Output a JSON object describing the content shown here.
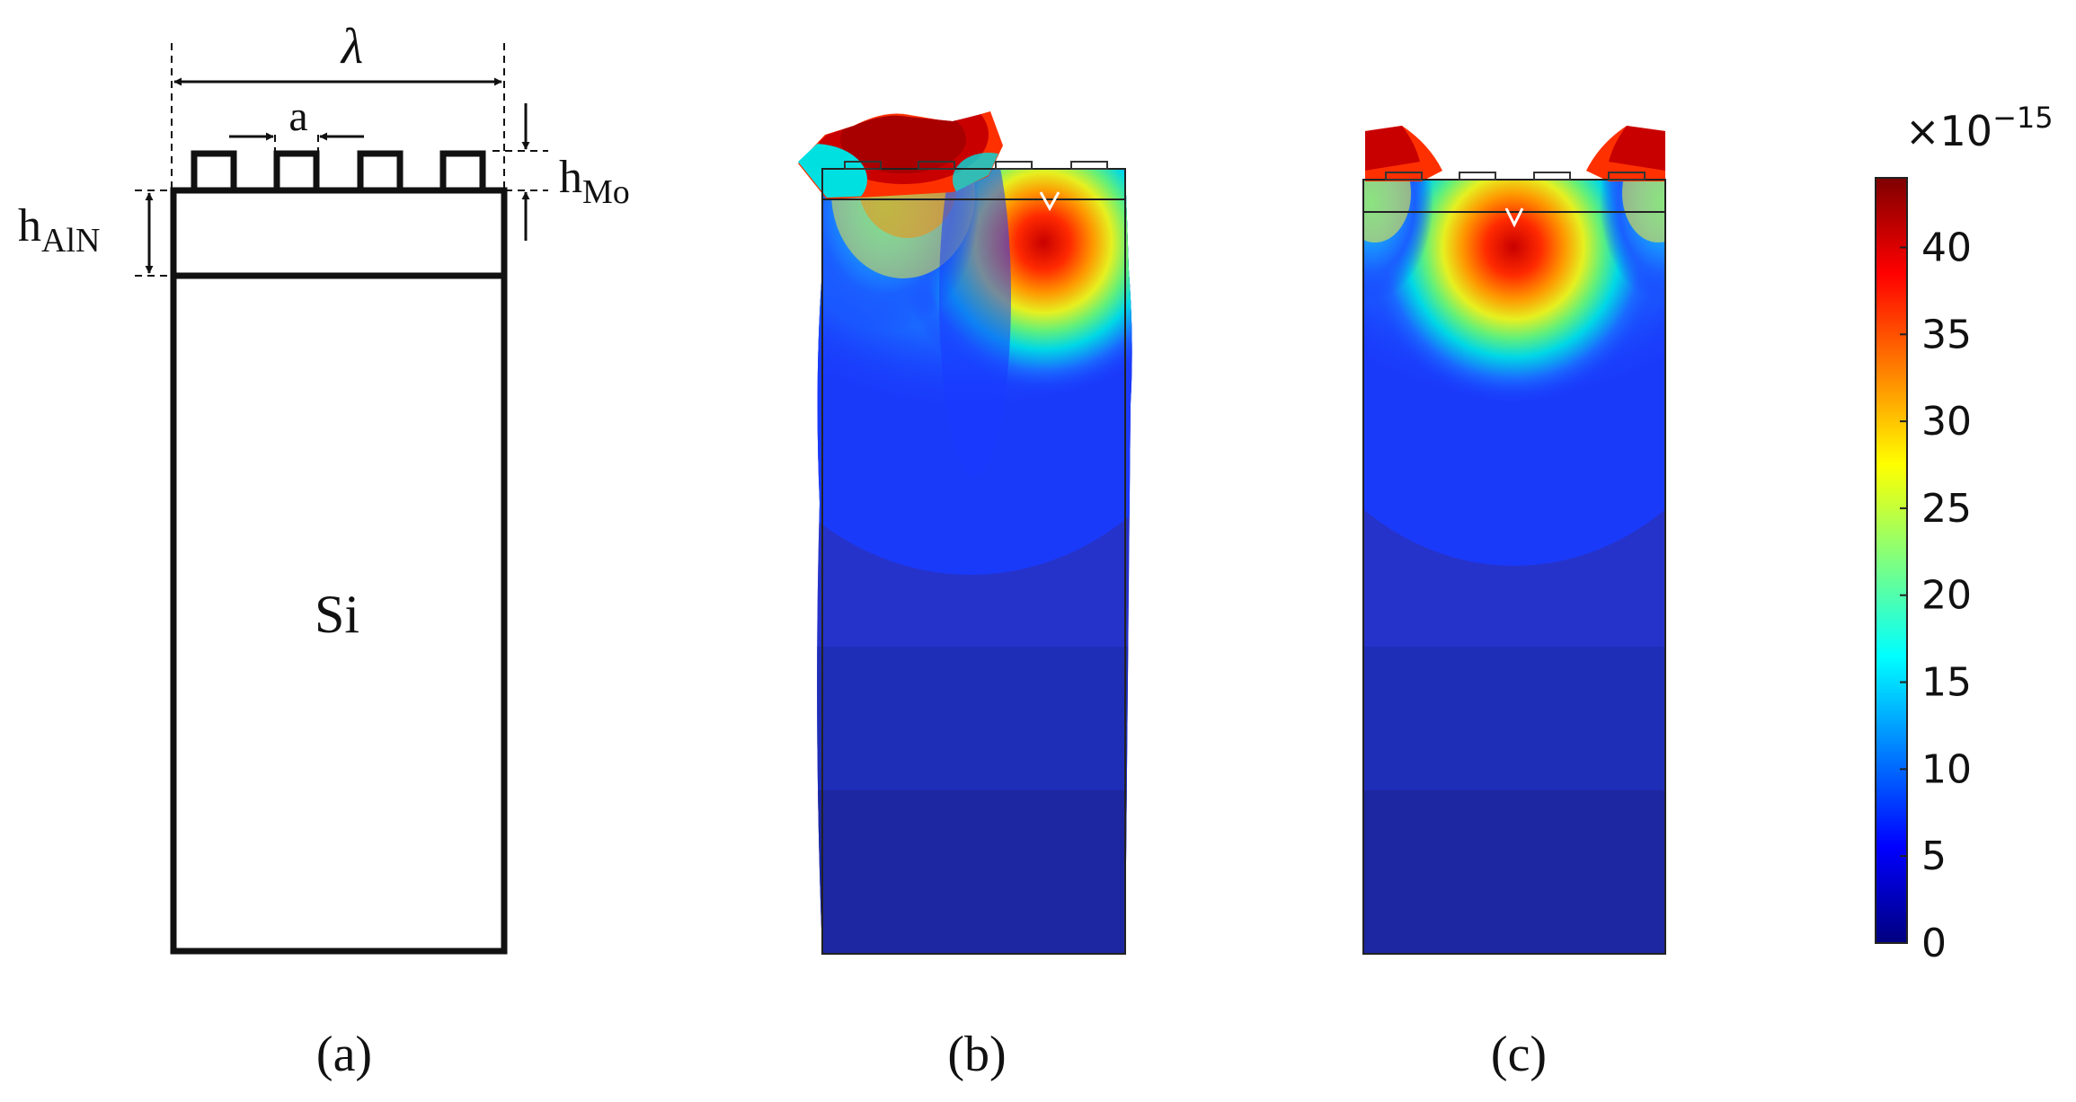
{
  "panel_a": {
    "lambda_label": "λ",
    "a_label": "a",
    "h_mo_base": "h",
    "h_mo_sub": "Mo",
    "h_aln_base": "h",
    "h_aln_sub": "AlN",
    "substrate_label": "Si",
    "caption": "(a)"
  },
  "panel_b": {
    "caption": "(b)"
  },
  "panel_c": {
    "caption": "(c)"
  },
  "colorbar": {
    "exponent_prefix": "×10",
    "exponent": "−15",
    "min": 0,
    "max": 44,
    "ticks": [
      "0",
      "5",
      "10",
      "15",
      "20",
      "25",
      "30",
      "35",
      "40"
    ],
    "colors": [
      "#00007f",
      "#0000ff",
      "#007fff",
      "#00ffff",
      "#7fff7f",
      "#ffff00",
      "#ff7f00",
      "#ff0000",
      "#7f0000"
    ]
  }
}
